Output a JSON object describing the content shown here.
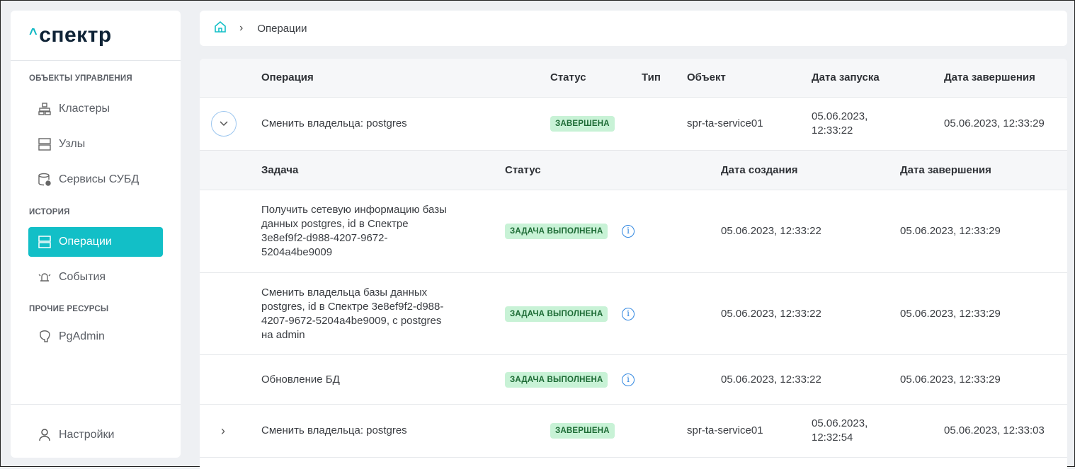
{
  "sidebar": {
    "logo": "спектр",
    "sections": [
      "ОБЪЕКТЫ УПРАВЛЕНИЯ",
      "ИСТОРИЯ",
      "ПРОЧИЕ РЕСУРСЫ"
    ],
    "items": [
      {
        "label": "Кластеры",
        "icon": "clusters-icon"
      },
      {
        "label": "Узлы",
        "icon": "nodes-icon"
      },
      {
        "label": "Сервисы СУБД",
        "icon": "db-services-icon"
      },
      {
        "label": "Операции",
        "icon": "operations-icon",
        "active": true
      },
      {
        "label": "События",
        "icon": "events-icon"
      },
      {
        "label": "PgAdmin",
        "icon": "pgadmin-icon"
      }
    ],
    "settings": "Настройки"
  },
  "breadcrumb": {
    "current": "Операции"
  },
  "table": {
    "headers": [
      "Операция",
      "Статус",
      "Тип",
      "Объект",
      "Дата запуска",
      "Дата завершения"
    ],
    "rows": [
      {
        "operation": "Сменить владельца: postgres",
        "status": "ЗАВЕРШЕНА",
        "type": "",
        "object": "spr-ta-service01",
        "start": "05.06.2023,",
        "start_time": "12:33:22",
        "end": "05.06.2023, 12:33:29",
        "expanded": true
      },
      {
        "operation": "Сменить владельца: postgres",
        "status": "ЗАВЕРШЕНА",
        "type": "",
        "object": "spr-ta-service01",
        "start": "05.06.2023,",
        "start_time": "12:32:54",
        "end": "05.06.2023, 12:33:03",
        "expanded": false
      }
    ],
    "subheaders": [
      "Задача",
      "Статус",
      "Дата создания",
      "Дата завершения"
    ],
    "tasks": [
      {
        "lines": [
          "Получить сетевую информацию базы",
          "данных postgres, id в Спектре",
          "3e8ef9f2-d988-4207-9672-",
          "5204a4be9009"
        ],
        "status": "ЗАДАЧА ВЫПОЛНЕНА",
        "created": "05.06.2023, 12:33:22",
        "finished": "05.06.2023, 12:33:29"
      },
      {
        "lines": [
          "Сменить владельца базы данных",
          "postgres, id в Спектре 3e8ef9f2-d988-",
          "4207-9672-5204a4be9009, с postgres",
          "на admin"
        ],
        "status": "ЗАДАЧА ВЫПОЛНЕНА",
        "created": "05.06.2023, 12:33:22",
        "finished": "05.06.2023, 12:33:29"
      },
      {
        "lines": [
          "Обновление БД"
        ],
        "status": "ЗАДАЧА ВЫПОЛНЕНА",
        "created": "05.06.2023, 12:33:22",
        "finished": "05.06.2023, 12:33:29"
      }
    ]
  },
  "colors": {
    "accent": "#12bfc7",
    "badge_bg": "#c8f2d6",
    "badge_text": "#1d6b35",
    "info": "#2f86e0"
  }
}
